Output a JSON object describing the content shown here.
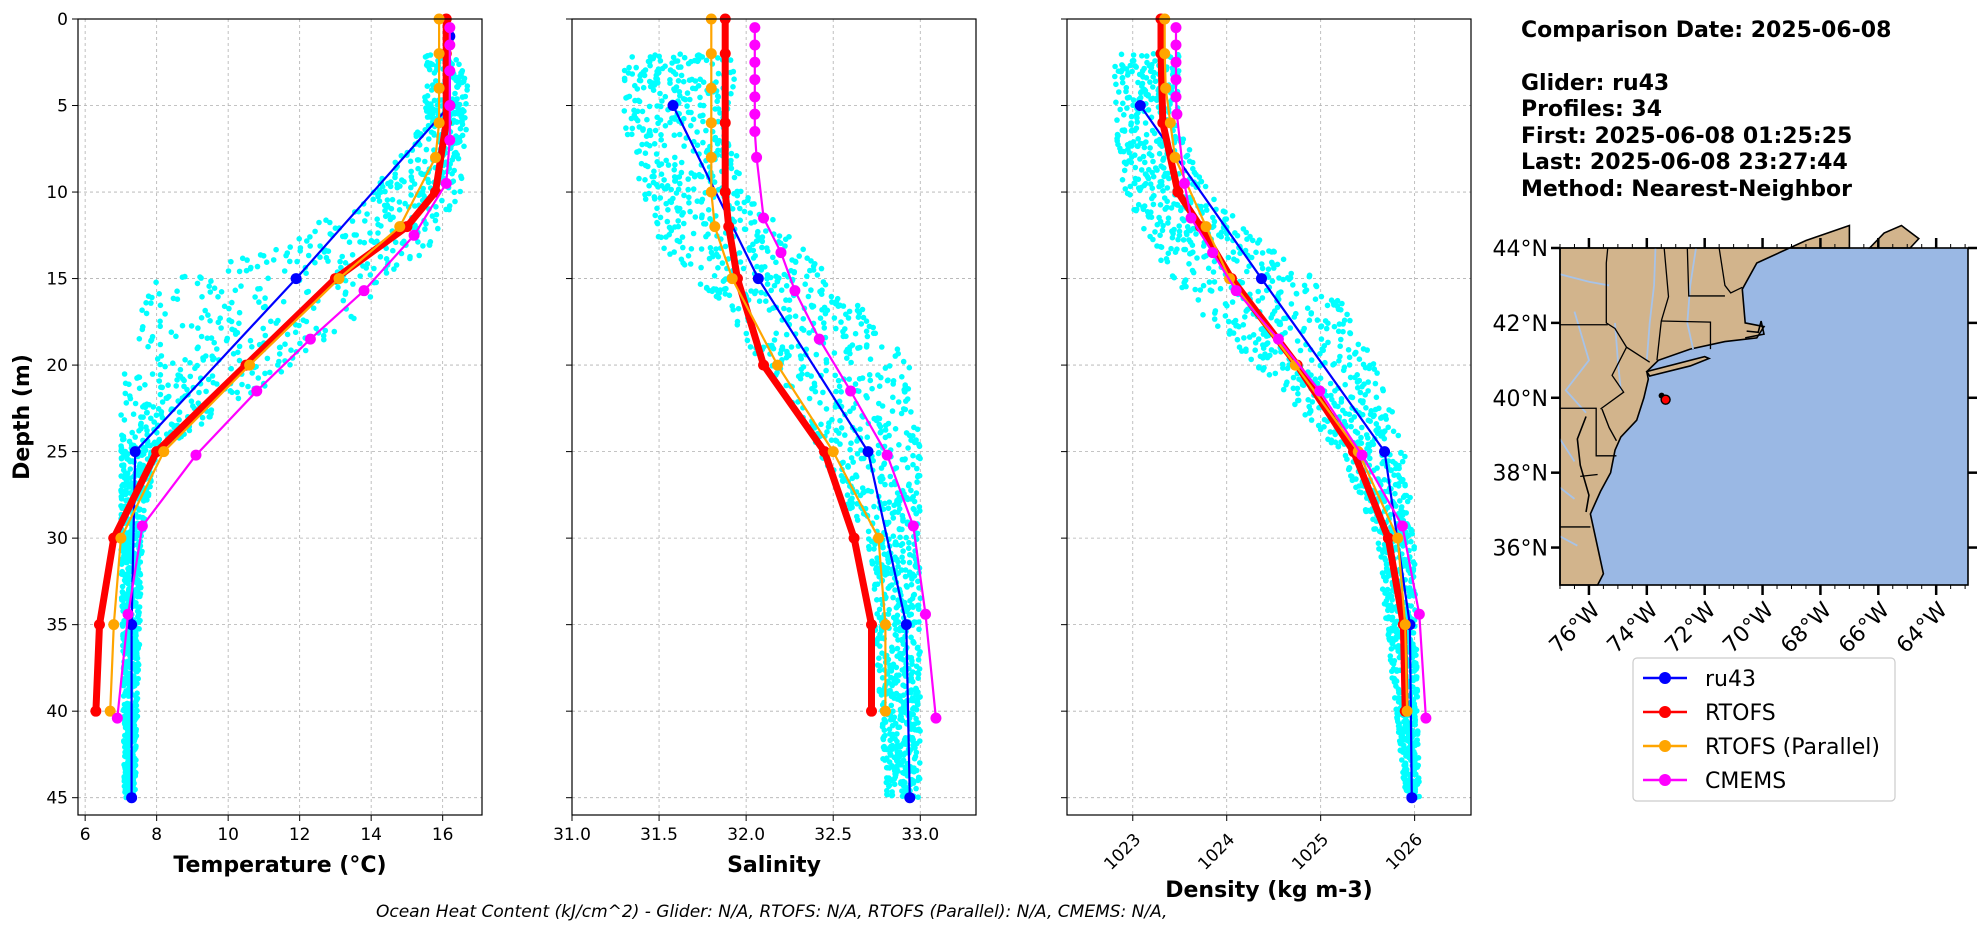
{
  "info": {
    "comparison_date": "Comparison Date: 2025-06-08",
    "glider": "Glider: ru43",
    "profiles": "Profiles: 34",
    "first": "First: 2025-06-08 01:25:25",
    "last": "Last: 2025-06-08 23:27:44",
    "method": "Method: Nearest-Neighbor"
  },
  "footer": "Ocean Heat Content (kJ/cm^2) - Glider: N/A,  RTOFS: N/A,  RTOFS (Parallel): N/A,  CMEMS: N/A,",
  "colors": {
    "ru43": "#0000ff",
    "rtofs": "#ff0000",
    "rtofs_parallel": "#ffa500",
    "cmems": "#ff00ff",
    "glider_raw": "#00ffff",
    "land": "#d2b48c",
    "ocean": "#9ab8e4"
  },
  "legend": [
    {
      "key": "ru43",
      "label": "ru43"
    },
    {
      "key": "rtofs",
      "label": "RTOFS"
    },
    {
      "key": "rtofs_parallel",
      "label": "RTOFS (Parallel)"
    },
    {
      "key": "cmems",
      "label": "CMEMS"
    }
  ],
  "map": {
    "lat_ticks": [
      "44°N",
      "42°N",
      "40°N",
      "38°N",
      "36°N"
    ],
    "lon_ticks": [
      "76°W",
      "74°W",
      "72°W",
      "70°W",
      "68°W",
      "66°W",
      "64°W"
    ],
    "lat_range": [
      35,
      44
    ],
    "lon_range": [
      -77,
      -62.9
    ],
    "glider_position": [
      -73.35,
      39.95
    ]
  },
  "chart_data": [
    {
      "type": "line",
      "xlabel": "Temperature (°C)",
      "ylabel": "Depth (m)",
      "xlim": [
        5.8,
        17.1
      ],
      "ylim": [
        46,
        0
      ],
      "xticks": [
        6,
        8,
        10,
        12,
        14,
        16
      ],
      "yticks": [
        0,
        5,
        10,
        15,
        20,
        25,
        30,
        35,
        40,
        45
      ],
      "grid": true,
      "raw_scatter": {
        "range": [
          [
            2,
            15.5,
            16.7
          ],
          [
            6,
            15.5,
            16.7
          ],
          [
            10,
            14.0,
            16.5
          ],
          [
            13,
            11.5,
            15.8
          ],
          [
            15,
            8.0,
            14.5
          ],
          [
            17,
            7.5,
            13.8
          ],
          [
            20,
            7.0,
            12.0
          ],
          [
            25,
            7.0,
            8.0
          ],
          [
            30,
            7.0,
            7.6
          ],
          [
            45,
            7.1,
            7.4
          ]
        ]
      },
      "series": [
        {
          "name": "ru43",
          "x": [
            16.2,
            16.2,
            11.9,
            7.4,
            7.3,
            7.3
          ],
          "y": [
            1,
            5,
            15,
            25,
            35,
            45
          ]
        },
        {
          "name": "RTOFS",
          "x": [
            16.1,
            16.1,
            16.1,
            15.8,
            15.0,
            13.0,
            10.5,
            8.0,
            6.8,
            6.4,
            6.3
          ],
          "y": [
            0,
            2,
            6,
            10,
            12,
            15,
            20,
            25,
            30,
            35,
            40
          ]
        },
        {
          "name": "RTOFS (Parallel)",
          "x": [
            15.9,
            15.9,
            15.9,
            15.9,
            15.8,
            14.8,
            13.1,
            10.6,
            8.2,
            7.0,
            6.8,
            6.7
          ],
          "y": [
            0,
            2,
            4,
            6,
            8,
            12,
            15,
            20,
            25,
            30,
            35,
            40
          ]
        },
        {
          "name": "CMEMS",
          "x": [
            16.2,
            16.2,
            16.2,
            16.2,
            16.2,
            16.1,
            15.2,
            13.8,
            12.3,
            10.8,
            9.1,
            7.6,
            7.2,
            6.9
          ],
          "y": [
            0.5,
            1.5,
            3,
            5,
            7,
            9.5,
            12.5,
            15.7,
            18.5,
            21.5,
            25.2,
            29.3,
            34.4,
            40.4
          ]
        }
      ]
    },
    {
      "type": "line",
      "xlabel": "Salinity",
      "ylabel": "",
      "xlim": [
        31.0,
        33.32
      ],
      "ylim": [
        46,
        0
      ],
      "xticks": [
        31.0,
        31.5,
        32.0,
        32.5,
        33.0
      ],
      "yticks": [
        0,
        5,
        10,
        15,
        20,
        25,
        30,
        35,
        40,
        45
      ],
      "grid": true,
      "raw_scatter": {
        "range": [
          [
            2,
            31.3,
            31.95
          ],
          [
            6,
            31.3,
            31.9
          ],
          [
            10,
            31.4,
            32.0
          ],
          [
            13,
            31.5,
            32.3
          ],
          [
            16,
            31.8,
            32.6
          ],
          [
            20,
            32.1,
            32.95
          ],
          [
            25,
            32.4,
            33.0
          ],
          [
            30,
            32.7,
            33.0
          ],
          [
            45,
            32.8,
            33.0
          ]
        ]
      },
      "series": [
        {
          "name": "ru43",
          "x": [
            31.58,
            32.07,
            32.7,
            32.92,
            32.94
          ],
          "y": [
            5,
            15,
            25,
            35,
            45
          ]
        },
        {
          "name": "RTOFS",
          "x": [
            31.88,
            31.88,
            31.88,
            31.88,
            31.9,
            31.95,
            32.1,
            32.45,
            32.62,
            32.72,
            32.72
          ],
          "y": [
            0,
            2,
            6,
            10,
            12,
            15,
            20,
            25,
            30,
            35,
            40
          ]
        },
        {
          "name": "RTOFS (Parallel)",
          "x": [
            31.8,
            31.8,
            31.8,
            31.8,
            31.8,
            31.8,
            31.82,
            31.92,
            32.18,
            32.5,
            32.76,
            32.8,
            32.8
          ],
          "y": [
            0,
            2,
            4,
            6,
            8,
            10,
            12,
            15,
            20,
            25,
            30,
            35,
            40
          ]
        },
        {
          "name": "CMEMS",
          "x": [
            32.05,
            32.05,
            32.05,
            32.05,
            32.05,
            32.05,
            32.05,
            32.06,
            32.1,
            32.2,
            32.28,
            32.42,
            32.6,
            32.81,
            32.96,
            33.03,
            33.09
          ],
          "y": [
            0.5,
            1.5,
            2.5,
            3.5,
            4.5,
            5.5,
            6.5,
            8,
            11.5,
            13.5,
            15.7,
            18.5,
            21.5,
            25.2,
            29.3,
            34.4,
            40.4
          ]
        }
      ]
    },
    {
      "type": "line",
      "xlabel": "Density (kg m-3)",
      "ylabel": "",
      "xlim": [
        1022.3,
        1026.6
      ],
      "ylim": [
        46,
        0
      ],
      "xticks": [
        1023,
        1024,
        1025,
        1026
      ],
      "yticks": [
        0,
        5,
        10,
        15,
        20,
        25,
        30,
        35,
        40,
        45
      ],
      "grid": true,
      "raw_scatter": {
        "range": [
          [
            2,
            1022.8,
            1023.5
          ],
          [
            6,
            1022.8,
            1023.5
          ],
          [
            10,
            1022.9,
            1023.8
          ],
          [
            13,
            1023.2,
            1024.4
          ],
          [
            16,
            1023.5,
            1025.2
          ],
          [
            20,
            1024.3,
            1025.6
          ],
          [
            25,
            1025.2,
            1025.9
          ],
          [
            30,
            1025.6,
            1026.0
          ],
          [
            45,
            1025.9,
            1026.05
          ]
        ]
      },
      "series": [
        {
          "name": "ru43",
          "x": [
            1023.08,
            1024.37,
            1025.68,
            1025.95,
            1025.97
          ],
          "y": [
            5,
            15,
            25,
            35,
            45
          ]
        },
        {
          "name": "RTOFS",
          "x": [
            1023.3,
            1023.3,
            1023.32,
            1023.48,
            1023.72,
            1024.05,
            1024.75,
            1025.35,
            1025.72,
            1025.88,
            1025.9
          ],
          "y": [
            0,
            2,
            6,
            10,
            12,
            15,
            20,
            25,
            30,
            35,
            40
          ]
        },
        {
          "name": "RTOFS (Parallel)",
          "x": [
            1023.34,
            1023.34,
            1023.35,
            1023.4,
            1023.45,
            1023.78,
            1024.03,
            1024.73,
            1025.4,
            1025.82,
            1025.9,
            1025.92
          ],
          "y": [
            0,
            2,
            4,
            6,
            8,
            12,
            15,
            20,
            25,
            30,
            35,
            40
          ]
        },
        {
          "name": "CMEMS",
          "x": [
            1023.46,
            1023.46,
            1023.46,
            1023.46,
            1023.46,
            1023.47,
            1023.55,
            1023.62,
            1023.85,
            1024.1,
            1024.55,
            1024.99,
            1025.44,
            1025.87,
            1026.05,
            1026.12
          ],
          "y": [
            0.5,
            1.5,
            2.5,
            3.5,
            4.5,
            5.5,
            9.5,
            11.5,
            13.5,
            15.7,
            18.5,
            21.5,
            25.2,
            29.3,
            34.4,
            40.4
          ]
        }
      ]
    }
  ]
}
